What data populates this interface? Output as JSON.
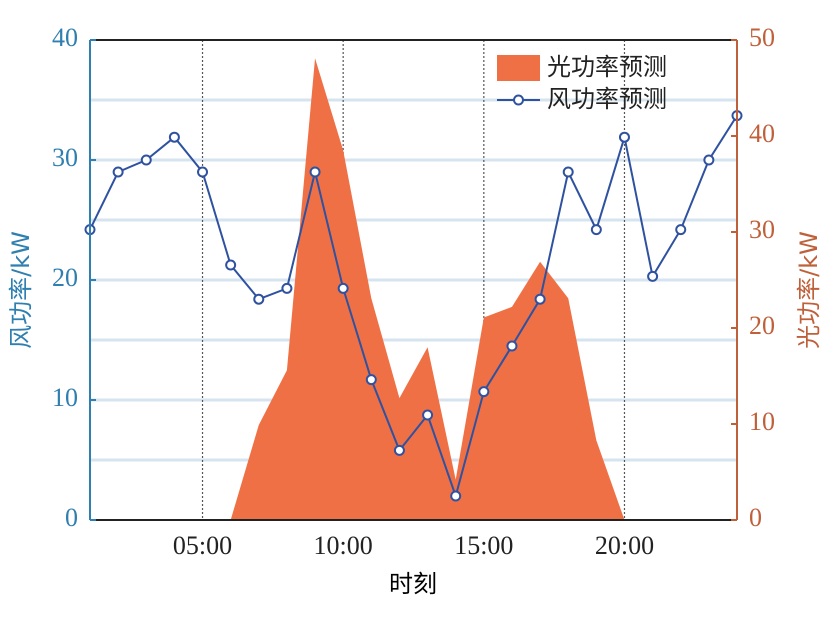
{
  "chart_data": {
    "type": "combo",
    "x_label": "时刻",
    "y_label": "风功率/kW",
    "y2_label": "光功率/kW",
    "x": [
      1,
      2,
      3,
      4,
      5,
      6,
      7,
      8,
      9,
      10,
      11,
      12,
      13,
      14,
      15,
      16,
      17,
      18,
      19,
      20,
      21,
      22,
      23,
      24
    ],
    "xlim": [
      1,
      24
    ],
    "xticks": [
      {
        "value": 5,
        "label": "05:00"
      },
      {
        "value": 10,
        "label": "10:00"
      },
      {
        "value": 15,
        "label": "15:00"
      },
      {
        "value": 20,
        "label": "20:00"
      }
    ],
    "ylim": [
      0,
      40
    ],
    "yticks": [
      0,
      10,
      20,
      30,
      40
    ],
    "y2lim": [
      0,
      50
    ],
    "y2ticks": [
      0,
      10,
      20,
      30,
      40,
      50
    ],
    "ygrid": [
      5,
      10,
      15,
      20,
      25,
      30,
      35
    ],
    "y_axis_color": "#2f7fb0",
    "y2_axis_color": "#c0603a",
    "legend": "upper right",
    "series": [
      {
        "name": "光功率预测",
        "type": "area",
        "axis": "y2",
        "color": "#f07046",
        "values": [
          null,
          null,
          null,
          null,
          null,
          0,
          9.9,
          15.6,
          48.1,
          38.5,
          23.1,
          12.7,
          18,
          4.2,
          21.1,
          22.2,
          26.9,
          23.1,
          8.3,
          0,
          null,
          null,
          null,
          null
        ]
      },
      {
        "name": "风功率预测",
        "type": "line",
        "color": "#2f52a0",
        "values": [
          24.2,
          29,
          30,
          31.9,
          29,
          21.25,
          18.4,
          19.3,
          29,
          19.3,
          11.7,
          5.8,
          8.75,
          2,
          10.7,
          14.5,
          18.4,
          29,
          24.2,
          31.9,
          20.3,
          24.2,
          30,
          33.7
        ]
      }
    ]
  }
}
